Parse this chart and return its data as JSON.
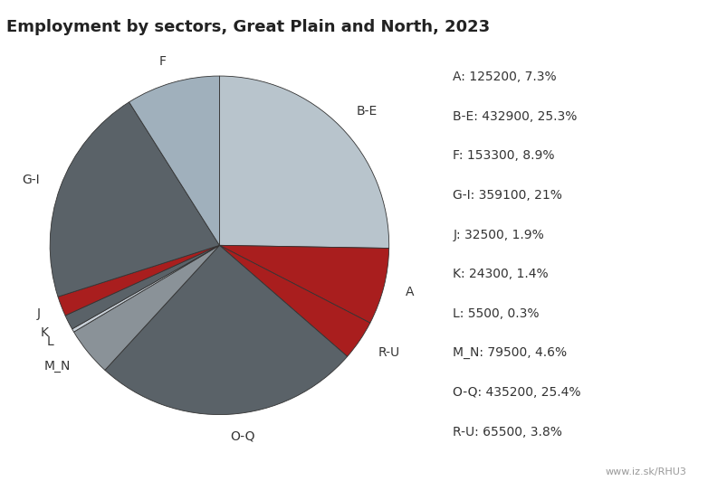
{
  "title": "Employment by sectors, Great Plain and North, 2023",
  "labels": [
    "A",
    "B-E",
    "F",
    "G-I",
    "J",
    "K",
    "L",
    "M_N",
    "O-Q",
    "R-U"
  ],
  "values": [
    125200,
    432900,
    153300,
    359100,
    32500,
    24300,
    5500,
    79500,
    435200,
    65500
  ],
  "colors": {
    "A": "#a91e1e",
    "B-E": "#b8c4cc",
    "F": "#a0b0bc",
    "G-I": "#5a6268",
    "J": "#a91e1e",
    "K": "#5a6268",
    "L": "#c8d0d8",
    "M_N": "#8a9298",
    "O-Q": "#5a6268",
    "R-U": "#a91e1e"
  },
  "legend_labels": [
    "A: 125200, 7.3%",
    "B-E: 432900, 25.3%",
    "F: 153300, 8.9%",
    "G-I: 359100, 21%",
    "J: 32500, 1.9%",
    "K: 24300, 1.4%",
    "L: 5500, 0.3%",
    "M_N: 79500, 4.6%",
    "O-Q: 435200, 25.4%",
    "R-U: 65500, 3.8%"
  ],
  "pie_order": [
    "B-E",
    "A",
    "R-U",
    "O-Q",
    "M_N",
    "L",
    "K",
    "J",
    "G-I",
    "F"
  ],
  "watermark": "www.iz.sk/RHU3",
  "background_color": "#ffffff",
  "title_fontsize": 13,
  "legend_fontsize": 10,
  "label_fontsize": 10,
  "startangle": 90
}
